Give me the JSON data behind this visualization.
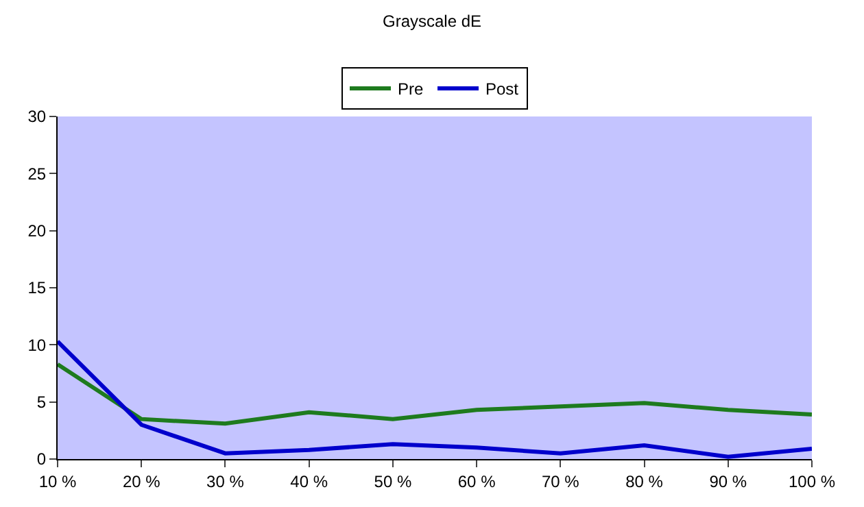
{
  "chart_data": {
    "type": "line",
    "title": "Grayscale dE",
    "categories": [
      "10 %",
      "20 %",
      "30 %",
      "40 %",
      "50 %",
      "60 %",
      "70 %",
      "80 %",
      "90 %",
      "100 %"
    ],
    "series": [
      {
        "name": "Pre",
        "color": "#1e7b1e",
        "values": [
          8.3,
          3.5,
          3.1,
          4.1,
          3.5,
          4.3,
          4.6,
          4.9,
          4.3,
          3.9
        ]
      },
      {
        "name": "Post",
        "color": "#0000cc",
        "values": [
          10.3,
          3.0,
          0.5,
          0.8,
          1.3,
          1.0,
          0.5,
          1.2,
          0.2,
          0.9
        ]
      }
    ],
    "ylim": [
      0,
      30
    ],
    "yticks": [
      0,
      5,
      10,
      15,
      20,
      25,
      30
    ],
    "grid": false,
    "legend": "top",
    "marker": "none",
    "line_style": "solid"
  }
}
